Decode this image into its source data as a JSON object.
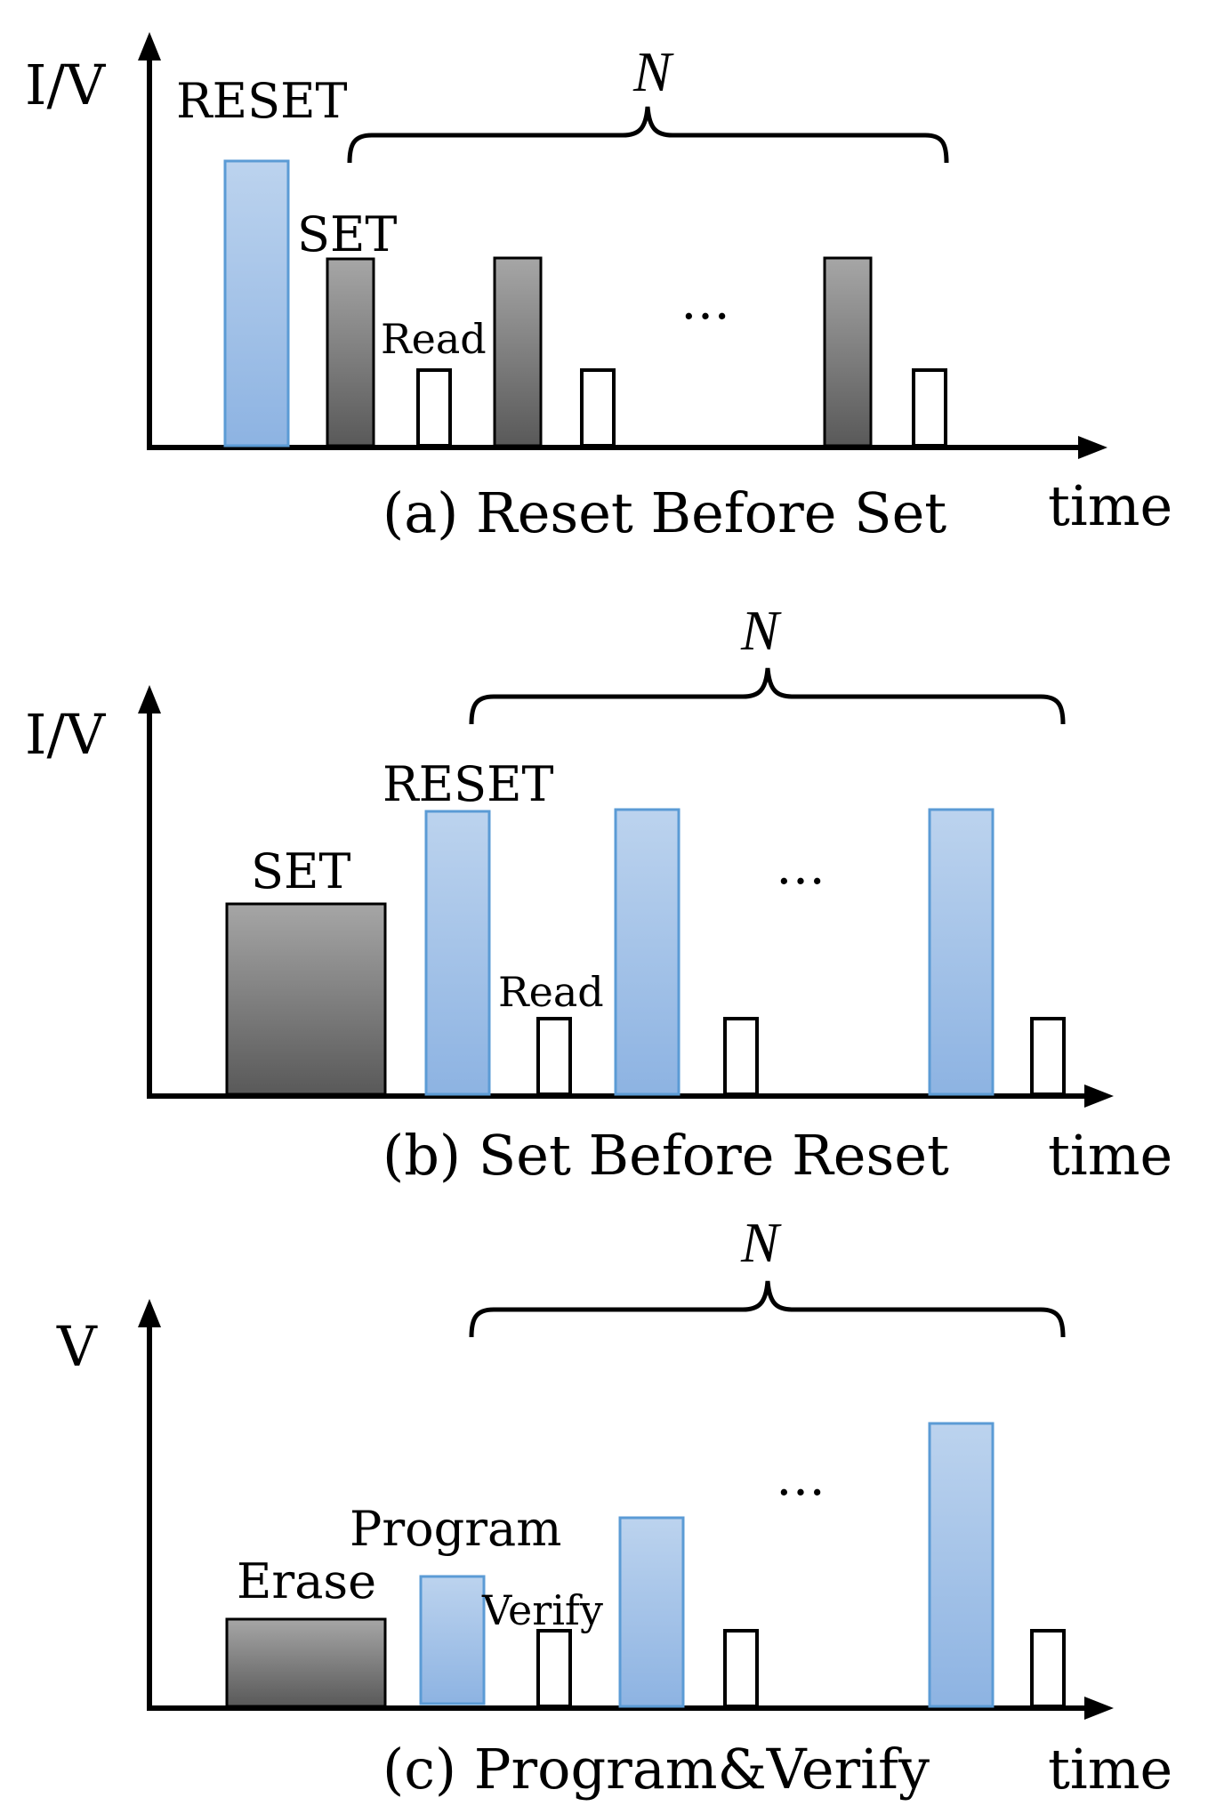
{
  "colors": {
    "reset_top": "#bcd3ee",
    "reset_bottom": "#8db3e2",
    "reset_stroke": "#5b9bd5",
    "set_top": "#a6a6a6",
    "set_bottom": "#595959",
    "axis": "#000000"
  },
  "ellipsis": "…",
  "panel_a": {
    "y_label": "I/V",
    "x_label": "time",
    "caption": "(a) Reset Before Set",
    "n_label": "N",
    "reset_label": "RESET",
    "set_label": "SET",
    "read_label": "Read"
  },
  "panel_b": {
    "y_label": "I/V",
    "x_label": "time",
    "caption": "(b) Set Before Reset",
    "n_label": "N",
    "reset_label": "RESET",
    "set_label": "SET",
    "read_label": "Read"
  },
  "panel_c": {
    "y_label": "V",
    "x_label": "time",
    "caption": "(c) Program&Verify",
    "n_label": "N",
    "erase_label": "Erase",
    "program_label": "Program",
    "verify_label": "Verify"
  }
}
